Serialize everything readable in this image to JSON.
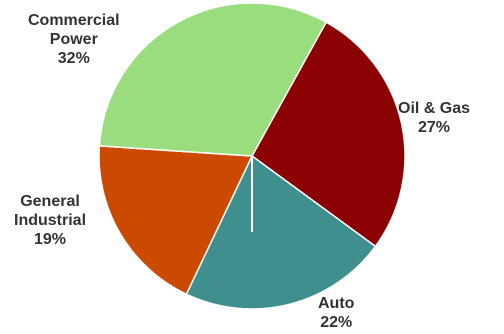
{
  "chart_data": {
    "type": "pie",
    "title": "",
    "slices": [
      {
        "label_lines": [
          "Oil & Gas"
        ],
        "label": "Oil & Gas",
        "value": 27,
        "value_label": "27%",
        "color": "#8b0000"
      },
      {
        "label_lines": [
          "Auto"
        ],
        "label": "Auto",
        "value": 22,
        "value_label": "22%",
        "color": "#408f8f"
      },
      {
        "label_lines": [
          "General",
          "Industrial"
        ],
        "label": "General Industrial",
        "value": 19,
        "value_label": "19%",
        "color": "#cc4a00"
      },
      {
        "label_lines": [
          "Commercial",
          "Power"
        ],
        "label": "Commercial Power",
        "value": 32,
        "value_label": "32%",
        "color": "#99dd7f"
      }
    ],
    "legend": "none",
    "colors": {
      "separator": "#ffffff"
    }
  }
}
